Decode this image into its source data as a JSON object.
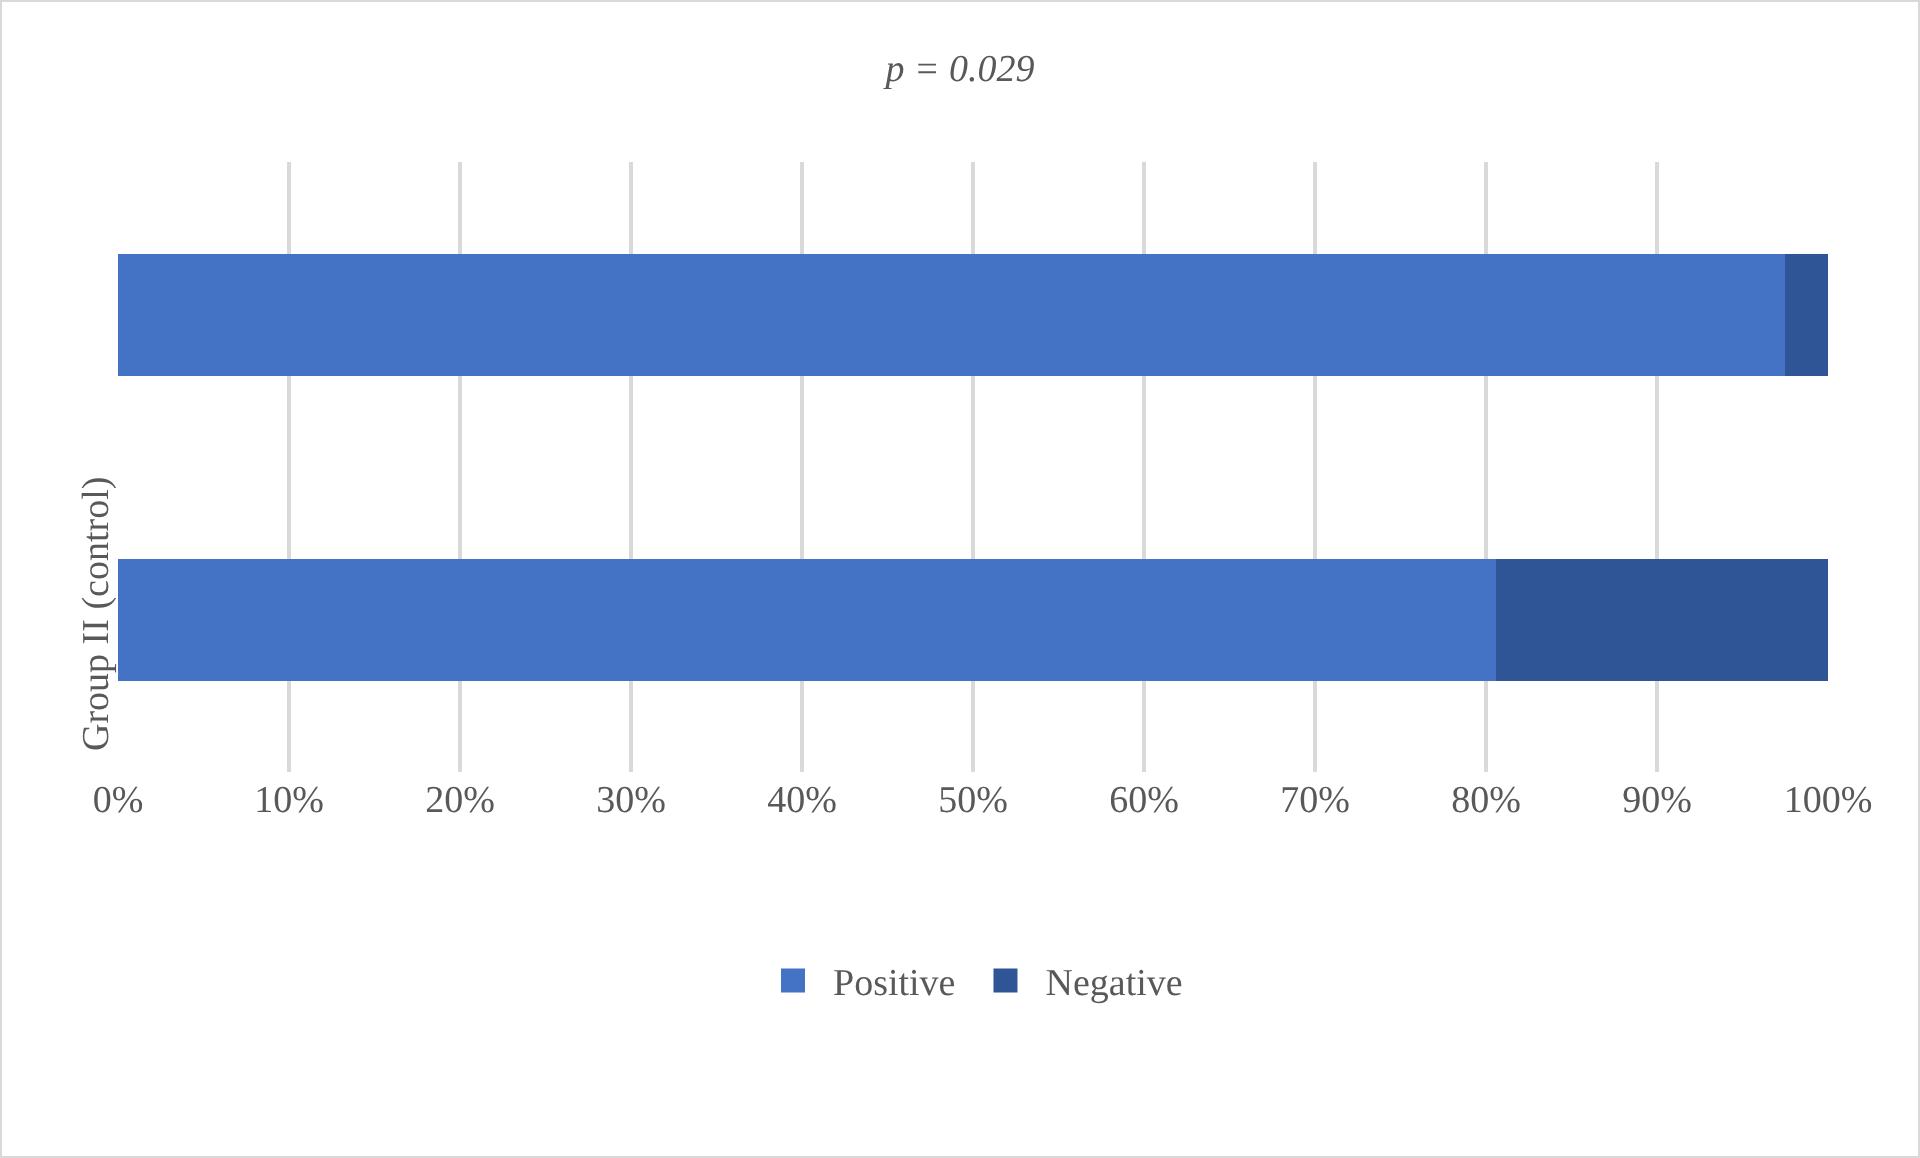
{
  "chart_data": {
    "type": "bar",
    "orientation": "horizontal",
    "stacked": true,
    "title": "p = 0.029",
    "categories": [
      null,
      "Group II (control)"
    ],
    "series": [
      {
        "name": "Positive",
        "color": "#4472c4",
        "values": [
          97.5,
          80.6
        ]
      },
      {
        "name": "Negative",
        "color": "#2f5597",
        "values": [
          2.5,
          19.4
        ]
      }
    ],
    "xlim": [
      0,
      100
    ],
    "xticks": [
      {
        "value": 0,
        "label": "0%"
      },
      {
        "value": 10,
        "label": "10%"
      },
      {
        "value": 20,
        "label": "20%"
      },
      {
        "value": 30,
        "label": "30%"
      },
      {
        "value": 40,
        "label": "40%"
      },
      {
        "value": 50,
        "label": "50%"
      },
      {
        "value": 60,
        "label": "60%"
      },
      {
        "value": 70,
        "label": "70%"
      },
      {
        "value": 80,
        "label": "80%"
      },
      {
        "value": 90,
        "label": "90%"
      },
      {
        "value": 100,
        "label": "100%"
      }
    ],
    "grid": "x",
    "legend": "bottom"
  }
}
